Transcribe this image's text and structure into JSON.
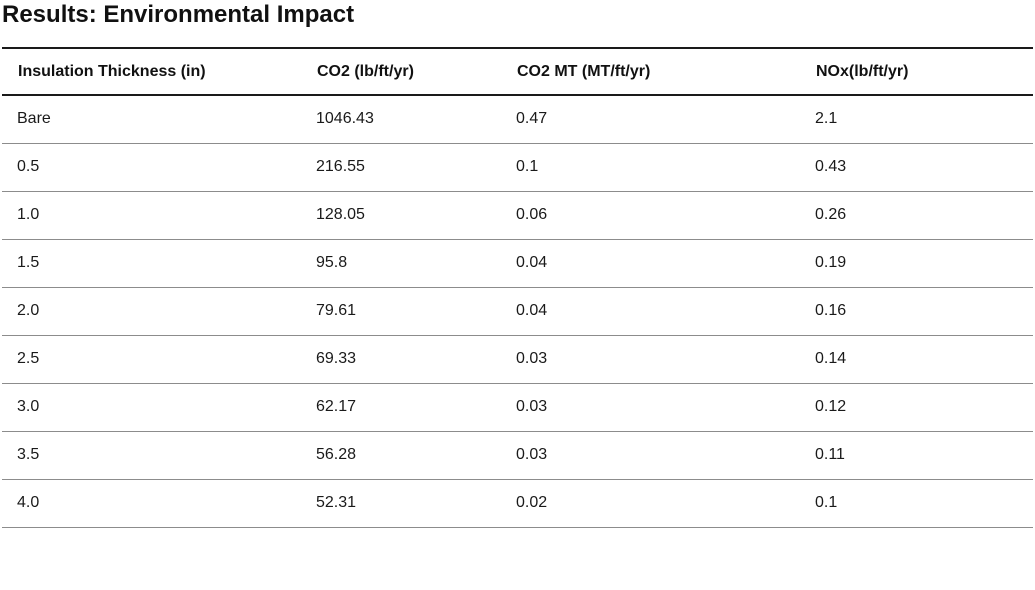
{
  "title": "Results: Environmental Impact",
  "table": {
    "headers": [
      "Insulation Thickness (in)",
      "CO2 (lb/ft/yr)",
      "CO2 MT (MT/ft/yr)",
      "NOx(lb/ft/yr)"
    ],
    "rows": [
      [
        "Bare",
        "1046.43",
        "0.47",
        "2.1"
      ],
      [
        "0.5",
        "216.55",
        "0.1",
        "0.43"
      ],
      [
        "1.0",
        "128.05",
        "0.06",
        "0.26"
      ],
      [
        "1.5",
        "95.8",
        "0.04",
        "0.19"
      ],
      [
        "2.0",
        "79.61",
        "0.04",
        "0.16"
      ],
      [
        "2.5",
        "69.33",
        "0.03",
        "0.14"
      ],
      [
        "3.0",
        "62.17",
        "0.03",
        "0.12"
      ],
      [
        "3.5",
        "56.28",
        "0.03",
        "0.11"
      ],
      [
        "4.0",
        "52.31",
        "0.02",
        "0.1"
      ]
    ]
  }
}
